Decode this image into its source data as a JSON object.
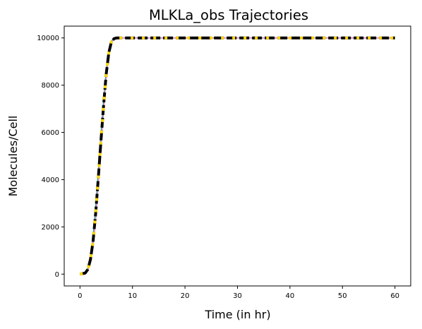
{
  "chart_data": {
    "type": "line",
    "title": "MLKLa_obs Trajectories",
    "xlabel": "Time (in hr)",
    "ylabel": "Molecules/Cell",
    "xlim": [
      -3,
      63
    ],
    "ylim": [
      -500,
      10500
    ],
    "xticks": [
      0,
      10,
      20,
      30,
      40,
      50,
      60
    ],
    "yticks": [
      0,
      2000,
      4000,
      6000,
      8000,
      10000
    ],
    "grid": false,
    "legend": "none",
    "series": [
      {
        "color": "#2ca089",
        "style": "solid",
        "x": [
          0,
          1,
          1.5,
          2,
          2.5,
          3,
          3.5,
          4,
          4.5,
          5,
          5.5,
          6,
          6.5,
          7,
          8,
          10,
          60
        ],
        "y": [
          0,
          60,
          250,
          750,
          1600,
          2900,
          4400,
          5950,
          7400,
          8650,
          9500,
          9880,
          9980,
          10000,
          10000,
          10000,
          10000
        ]
      },
      {
        "color": "#e377c2",
        "style": "solid",
        "x": [
          0,
          1,
          1.5,
          2,
          2.5,
          3,
          3.5,
          4,
          4.5,
          5,
          5.5,
          6,
          6.5,
          7,
          8,
          10,
          60
        ],
        "y": [
          0,
          30,
          150,
          500,
          1200,
          2300,
          3800,
          5350,
          6900,
          8300,
          9250,
          9800,
          9960,
          10000,
          10000,
          10000,
          10000
        ]
      },
      {
        "color": "#000000",
        "style": "dashed-mean",
        "x": [
          0,
          1,
          1.5,
          2,
          2.5,
          3,
          3.5,
          4,
          4.5,
          5,
          5.5,
          6,
          6.5,
          7,
          8,
          10,
          60
        ],
        "y": [
          0,
          45,
          200,
          620,
          1400,
          2600,
          4100,
          5650,
          7150,
          8480,
          9380,
          9840,
          9970,
          10000,
          10000,
          10000,
          10000
        ]
      },
      {
        "color": "#ffd700",
        "style": "dotted-median",
        "x": [
          0,
          1,
          1.5,
          2,
          2.5,
          3,
          3.5,
          4,
          4.5,
          5,
          5.5,
          6,
          6.5,
          7,
          8,
          10,
          60
        ],
        "y": [
          0,
          45,
          200,
          620,
          1400,
          2600,
          4100,
          5650,
          7150,
          8480,
          9380,
          9840,
          9970,
          10000,
          10000,
          10000,
          10000
        ]
      }
    ]
  }
}
